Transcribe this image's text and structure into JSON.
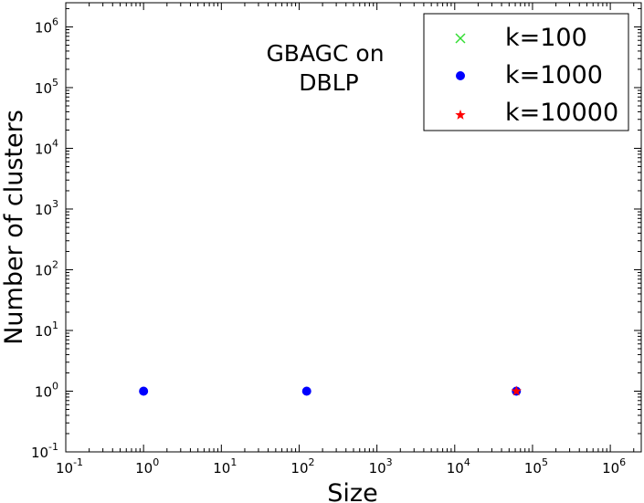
{
  "chart_data": {
    "type": "scatter",
    "title": "",
    "annotation_lines": [
      "GBAGC on",
      "DBLP"
    ],
    "xlabel": "Size",
    "ylabel": "Number of clusters",
    "xscale": "log",
    "yscale": "log",
    "xlim": [
      0.1,
      2500000
    ],
    "ylim": [
      0.1,
      2500000
    ],
    "x_ticks": [
      {
        "base": "10",
        "exp": "-1",
        "value": 0.1
      },
      {
        "base": "10",
        "exp": "0",
        "value": 1
      },
      {
        "base": "10",
        "exp": "1",
        "value": 10
      },
      {
        "base": "10",
        "exp": "2",
        "value": 100
      },
      {
        "base": "10",
        "exp": "3",
        "value": 1000
      },
      {
        "base": "10",
        "exp": "4",
        "value": 10000
      },
      {
        "base": "10",
        "exp": "5",
        "value": 100000
      },
      {
        "base": "10",
        "exp": "6",
        "value": 1000000
      }
    ],
    "y_ticks": [
      {
        "base": "10",
        "exp": "-1",
        "value": 0.1
      },
      {
        "base": "10",
        "exp": "0",
        "value": 1
      },
      {
        "base": "10",
        "exp": "1",
        "value": 10
      },
      {
        "base": "10",
        "exp": "2",
        "value": 100
      },
      {
        "base": "10",
        "exp": "3",
        "value": 1000
      },
      {
        "base": "10",
        "exp": "4",
        "value": 10000
      },
      {
        "base": "10",
        "exp": "5",
        "value": 100000
      },
      {
        "base": "10",
        "exp": "6",
        "value": 1000000
      }
    ],
    "grid": false,
    "legend_position": "top-right",
    "series": [
      {
        "name": "k=100",
        "marker": "x",
        "color": "#33dd33",
        "points": []
      },
      {
        "name": "k=1000",
        "marker": "circle",
        "color": "#0000ff",
        "points": [
          [
            1,
            1
          ],
          [
            125,
            1
          ],
          [
            62000,
            1
          ]
        ]
      },
      {
        "name": "k=10000",
        "marker": "star",
        "color": "#ff0000",
        "points": [
          [
            62000,
            1
          ]
        ]
      }
    ]
  }
}
